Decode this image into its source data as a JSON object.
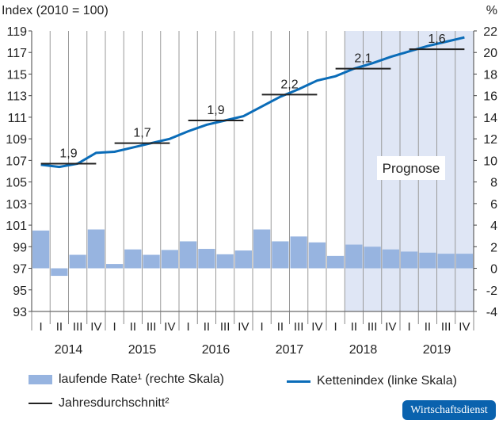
{
  "chart_data": {
    "type": "bar+line",
    "ylabel_left": "Index (2010 = 100)",
    "ylabel_right": "%",
    "ylim_left": [
      93,
      119
    ],
    "ylim_right": [
      -4,
      22
    ],
    "yticks_left": [
      93,
      95,
      97,
      99,
      101,
      103,
      105,
      107,
      109,
      111,
      113,
      115,
      117,
      119
    ],
    "yticks_right": [
      -4,
      -2,
      0,
      2,
      4,
      6,
      8,
      10,
      12,
      14,
      16,
      18,
      20,
      22
    ],
    "years": [
      "2014",
      "2015",
      "2016",
      "2017",
      "2018",
      "2019"
    ],
    "quarters": [
      "I",
      "II",
      "III",
      "IV"
    ],
    "grid": "vertical",
    "forecast_label": "Prognose",
    "forecast_start_index": 17,
    "series": [
      {
        "name": "laufende Rate¹ (rechte Skala)",
        "type": "bar",
        "axis": "right",
        "color": "#97b4e0",
        "values": [
          3.5,
          -0.7,
          1.25,
          3.6,
          0.4,
          1.75,
          1.25,
          1.7,
          2.5,
          1.8,
          1.3,
          1.65,
          3.6,
          2.5,
          2.95,
          2.4,
          1.15,
          2.2,
          2.0,
          1.75,
          1.55,
          1.45,
          1.35,
          1.35
        ]
      },
      {
        "name": "Kettenindex (linke Skala)",
        "type": "line",
        "axis": "left",
        "color": "#0a6cb8",
        "values": [
          106.6,
          106.4,
          106.7,
          107.7,
          107.8,
          108.2,
          108.6,
          109.0,
          109.7,
          110.3,
          110.7,
          111.1,
          112.0,
          112.9,
          113.6,
          114.4,
          114.8,
          115.5,
          116.0,
          116.6,
          117.1,
          117.6,
          118.0,
          118.4
        ]
      },
      {
        "name": "Jahresdurchschnitt²",
        "type": "annual-average",
        "axis": "left",
        "color": "#222222",
        "levels": [
          106.7,
          108.6,
          110.7,
          113.1,
          115.5,
          117.3
        ],
        "labels": [
          "1,9",
          "1,7",
          "1,9",
          "2,2",
          "2,1",
          "1,6"
        ]
      }
    ]
  },
  "legend": {
    "bar": "laufende Rate¹ (rechte Skala)",
    "line": "Kettenindex (linke Skala)",
    "avg": "Jahresdurchschnitt²"
  },
  "logo": "Wirtschaftsdienst"
}
